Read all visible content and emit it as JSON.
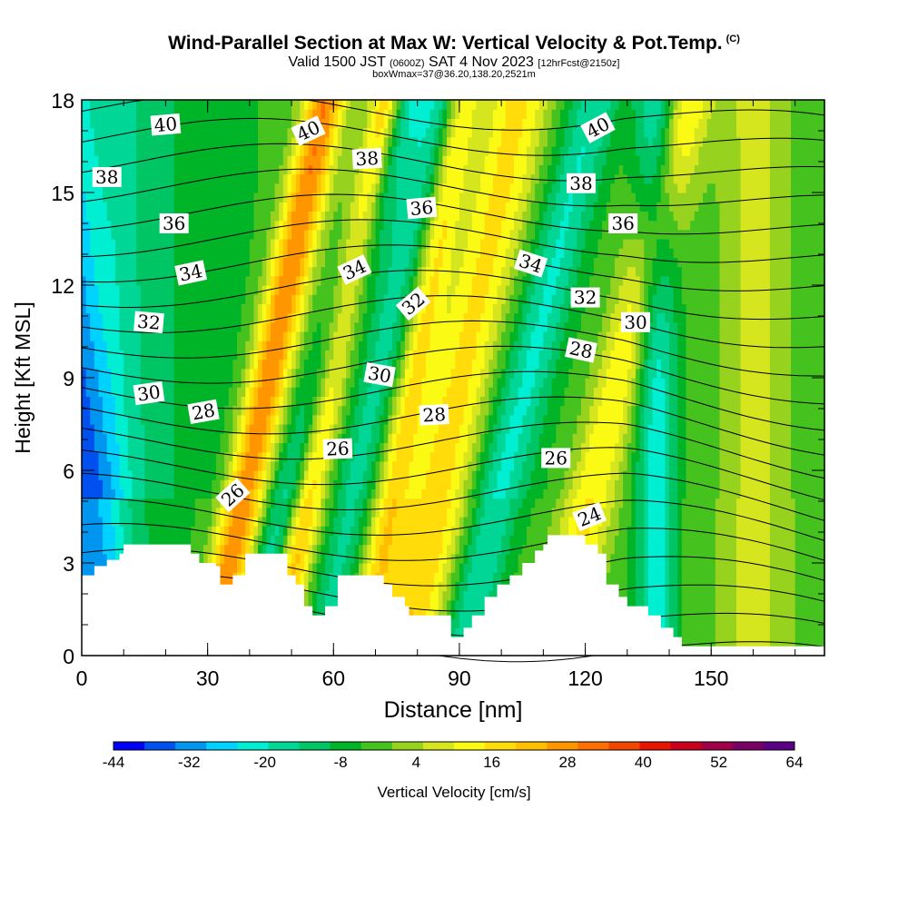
{
  "title": {
    "main": "Wind-Parallel Section at Max W: Vertical Velocity & Pot.Temp.",
    "copyright": "(C)",
    "valid_prefix": "Valid 1500 JST",
    "valid_utc": "(0600Z)",
    "valid_date": "SAT 4 Nov 2023",
    "forecast": "[12hrFcst@2150z]",
    "boxinfo": "boxWmax=37@36.20,138.20,2521m"
  },
  "colorbar": {
    "title": "Vertical Velocity [cm/s]",
    "tick_labels": [
      "-44",
      "-32",
      "-20",
      "-8",
      "4",
      "16",
      "28",
      "40",
      "52",
      "64"
    ],
    "colors": [
      "#0000f5",
      "#0050f0",
      "#0096f0",
      "#00d2ff",
      "#00eed2",
      "#00d796",
      "#00c564",
      "#00b428",
      "#45c21e",
      "#96d21e",
      "#d6e61e",
      "#fafa14",
      "#ffdc0a",
      "#ffbe00",
      "#ff9600",
      "#ff6e00",
      "#f04600",
      "#e61400",
      "#c8001e",
      "#a00046",
      "#7a0064",
      "#5a0082"
    ]
  },
  "chart_data": {
    "type": "heatmap",
    "title": "Wind-Parallel Section at Max W: Vertical Velocity & Pot.Temp.",
    "xlabel": "Distance [nm]",
    "ylabel": "Height [Kft MSL]",
    "xlim": [
      0,
      177
    ],
    "ylim": [
      0,
      18
    ],
    "x_ticks": [
      "0",
      "30",
      "60",
      "90",
      "120",
      "150"
    ],
    "y_ticks": [
      "0",
      "3",
      "6",
      "9",
      "12",
      "15",
      "18"
    ],
    "color_variable": "Vertical Velocity [cm/s]",
    "color_range": [
      -44,
      64
    ],
    "color_levels": [
      -44,
      -32,
      -20,
      -8,
      4,
      16,
      28,
      40,
      52,
      64
    ],
    "max_w": 37,
    "updraft_bands": [
      {
        "x0": 31,
        "slope": 0.5,
        "width": 5,
        "w": 33
      },
      {
        "x0": 46,
        "slope": 0.5,
        "width": 4,
        "w": 28
      },
      {
        "x0": 67,
        "slope": 0.45,
        "width": 4,
        "w": 18
      },
      {
        "x0": 77,
        "slope": 0.5,
        "width": 8,
        "w": 22
      },
      {
        "x0": 112,
        "slope": 0.6,
        "width": 6,
        "w": 18
      },
      {
        "x0": 160,
        "slope": 0.0,
        "width": 6,
        "w": 8
      }
    ],
    "downdraft_bands": [
      {
        "x0": 5,
        "slope": -0.3,
        "width": 9,
        "w": -22
      },
      {
        "x0": 39,
        "slope": 0.7,
        "width": 5,
        "w": -18
      },
      {
        "x0": 57,
        "slope": 0.5,
        "width": 5,
        "w": -14
      },
      {
        "x0": 90,
        "slope": 0.6,
        "width": 6,
        "w": -16
      },
      {
        "x0": 137,
        "slope": 0.0,
        "width": 5,
        "w": -20
      }
    ],
    "contour_variable": "Potential Temperature",
    "contour_labels": [
      {
        "text": "40",
        "x": 20,
        "y": 17.2,
        "rot": -5
      },
      {
        "text": "40",
        "x": 54,
        "y": 17.0,
        "rot": -25
      },
      {
        "text": "40",
        "x": 123,
        "y": 17.1,
        "rot": -28
      },
      {
        "text": "38",
        "x": 6,
        "y": 15.5,
        "rot": 0
      },
      {
        "text": "38",
        "x": 68,
        "y": 16.1,
        "rot": -3
      },
      {
        "text": "38",
        "x": 119,
        "y": 15.3,
        "rot": 0
      },
      {
        "text": "36",
        "x": 22,
        "y": 14.0,
        "rot": 0
      },
      {
        "text": "36",
        "x": 81,
        "y": 14.5,
        "rot": -5
      },
      {
        "text": "36",
        "x": 129,
        "y": 14.0,
        "rot": 0
      },
      {
        "text": "34",
        "x": 26,
        "y": 12.4,
        "rot": -12
      },
      {
        "text": "34",
        "x": 65,
        "y": 12.5,
        "rot": -25
      },
      {
        "text": "34",
        "x": 107,
        "y": 12.7,
        "rot": 18
      },
      {
        "text": "32",
        "x": 16,
        "y": 10.8,
        "rot": 5
      },
      {
        "text": "32",
        "x": 79,
        "y": 11.4,
        "rot": -40
      },
      {
        "text": "32",
        "x": 120,
        "y": 11.6,
        "rot": 0
      },
      {
        "text": "30",
        "x": 16,
        "y": 8.5,
        "rot": -8
      },
      {
        "text": "30",
        "x": 71,
        "y": 9.1,
        "rot": 10
      },
      {
        "text": "30",
        "x": 132,
        "y": 10.8,
        "rot": 0
      },
      {
        "text": "28",
        "x": 29,
        "y": 7.9,
        "rot": -10
      },
      {
        "text": "28",
        "x": 84,
        "y": 7.8,
        "rot": -3
      },
      {
        "text": "28",
        "x": 119,
        "y": 9.9,
        "rot": 12
      },
      {
        "text": "26",
        "x": 36,
        "y": 5.2,
        "rot": -42
      },
      {
        "text": "26",
        "x": 61,
        "y": 6.7,
        "rot": -2
      },
      {
        "text": "26",
        "x": 113,
        "y": 6.4,
        "rot": 0
      },
      {
        "text": "24",
        "x": 121,
        "y": 4.5,
        "rot": -22
      }
    ],
    "terrain_height": [
      {
        "x": 0,
        "h": 2.6
      },
      {
        "x": 3,
        "h": 2.9
      },
      {
        "x": 6,
        "h": 3.1
      },
      {
        "x": 9,
        "h": 3.3
      },
      {
        "x": 10,
        "h": 3.6
      },
      {
        "x": 25,
        "h": 3.6
      },
      {
        "x": 26,
        "h": 3.3
      },
      {
        "x": 28,
        "h": 3.0
      },
      {
        "x": 32,
        "h": 2.9
      },
      {
        "x": 33,
        "h": 2.3
      },
      {
        "x": 36,
        "h": 2.6
      },
      {
        "x": 39,
        "h": 3.3
      },
      {
        "x": 48,
        "h": 3.3
      },
      {
        "x": 49,
        "h": 2.6
      },
      {
        "x": 51,
        "h": 2.3
      },
      {
        "x": 53,
        "h": 1.6
      },
      {
        "x": 55,
        "h": 1.3
      },
      {
        "x": 58,
        "h": 1.6
      },
      {
        "x": 61,
        "h": 2.6
      },
      {
        "x": 71,
        "h": 2.6
      },
      {
        "x": 72,
        "h": 2.3
      },
      {
        "x": 74,
        "h": 1.9
      },
      {
        "x": 77,
        "h": 1.6
      },
      {
        "x": 78,
        "h": 1.3
      },
      {
        "x": 87,
        "h": 1.3
      },
      {
        "x": 88,
        "h": 0.6
      },
      {
        "x": 91,
        "h": 0.9
      },
      {
        "x": 93,
        "h": 1.3
      },
      {
        "x": 96,
        "h": 1.9
      },
      {
        "x": 99,
        "h": 2.3
      },
      {
        "x": 102,
        "h": 2.6
      },
      {
        "x": 105,
        "h": 3.0
      },
      {
        "x": 108,
        "h": 3.4
      },
      {
        "x": 110,
        "h": 3.6
      },
      {
        "x": 111,
        "h": 3.9
      },
      {
        "x": 119,
        "h": 3.9
      },
      {
        "x": 120,
        "h": 3.6
      },
      {
        "x": 123,
        "h": 3.3
      },
      {
        "x": 125,
        "h": 2.3
      },
      {
        "x": 128,
        "h": 1.9
      },
      {
        "x": 130,
        "h": 1.6
      },
      {
        "x": 135,
        "h": 1.3
      },
      {
        "x": 138,
        "h": 0.9
      },
      {
        "x": 141,
        "h": 0.6
      },
      {
        "x": 143,
        "h": 0.3
      },
      {
        "x": 177,
        "h": 0.3
      }
    ]
  }
}
